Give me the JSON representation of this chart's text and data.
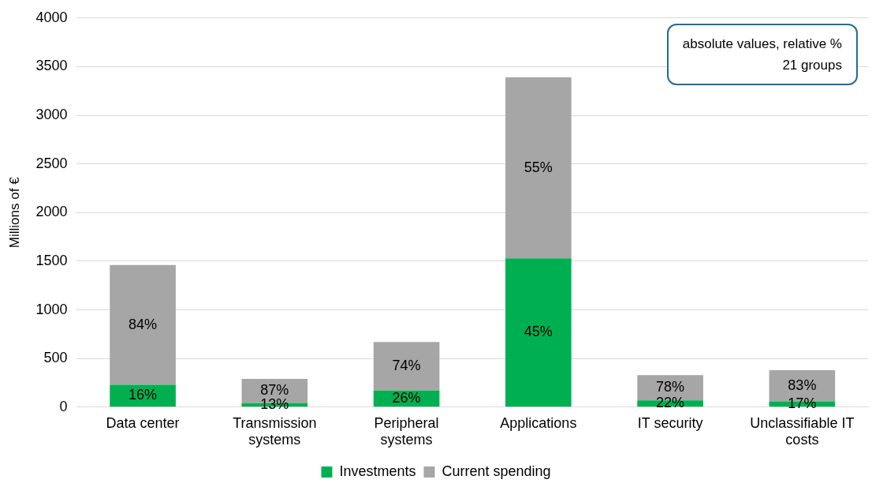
{
  "chart_data": {
    "type": "bar",
    "stacked": true,
    "ylabel": "Millions of €",
    "categories": [
      "Data center",
      "Transmission systems",
      "Peripheral systems",
      "Applications",
      "IT security",
      "Unclassifiable IT costs"
    ],
    "series": [
      {
        "name": "Investments",
        "color": "#00b050",
        "values": [
          230,
          40,
          170,
          1530,
          70,
          60
        ]
      },
      {
        "name": "Current spending",
        "color": "#a6a6a6",
        "values": [
          1230,
          250,
          500,
          1860,
          260,
          320
        ]
      }
    ],
    "ylim": [
      0,
      4000
    ],
    "yticks": [
      0,
      500,
      1000,
      1500,
      2000,
      2500,
      3000,
      3500,
      4000
    ],
    "grid": "y",
    "legend": "bottom",
    "annotations": [
      "absolute values, relative %",
      "21 groups",
      "16%",
      "84%",
      "13%",
      "87%",
      "26%",
      "74%",
      "45%",
      "55%",
      "22%",
      "78%",
      "17%",
      "83%"
    ]
  }
}
